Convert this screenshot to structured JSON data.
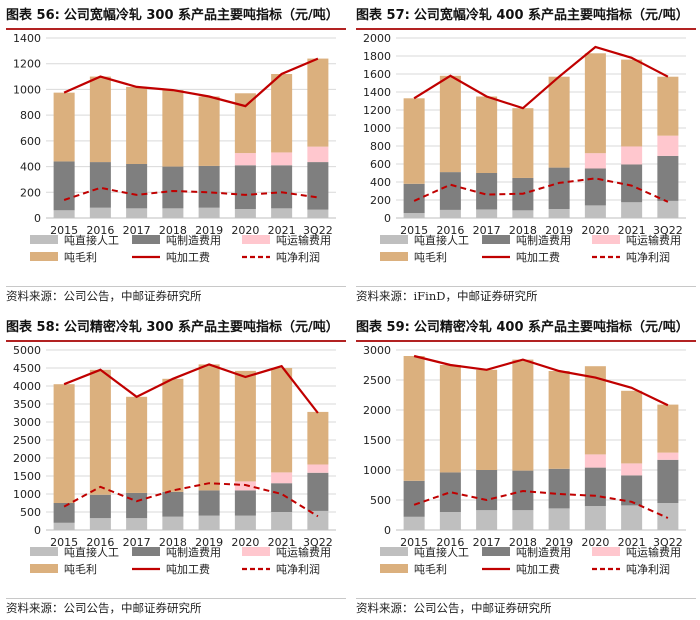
{
  "panels": [
    {
      "title_prefix": "图表 56:",
      "title_text": "公司宽幅冷轧 300 系产品主要吨指标（元/吨）",
      "source": "资料来源：公司公告，中邮证券研究所"
    },
    {
      "title_prefix": "图表 57:",
      "title_text": "公司宽幅冷轧 400 系产品主要吨指标（元/吨）",
      "source": "资料来源：iFinD，中邮证券研究所"
    },
    {
      "title_prefix": "图表 58:",
      "title_text": "公司精密冷轧 300 系产品主要吨指标（元/吨）",
      "source": "资料来源：公司公告，中邮证券研究所"
    },
    {
      "title_prefix": "图表 59:",
      "title_text": "公司精密冷轧 400 系产品主要吨指标（元/吨）",
      "source": "资料来源：公司公告，中邮证券研究所"
    }
  ],
  "chart_data": [
    {
      "type": "bar",
      "stacked": true,
      "categories": [
        "2015",
        "2016",
        "2017",
        "2018",
        "2019",
        "2020",
        "2021",
        "3Q22"
      ],
      "ylim": [
        0,
        1400
      ],
      "yticks": [
        0,
        200,
        400,
        600,
        800,
        1000,
        1200,
        1400
      ],
      "series": [
        {
          "name": "吨直接人工",
          "type": "bar",
          "values": [
            60,
            80,
            75,
            75,
            80,
            70,
            75,
            65
          ]
        },
        {
          "name": "吨制造费用",
          "type": "bar",
          "values": [
            380,
            355,
            345,
            325,
            325,
            340,
            335,
            370
          ]
        },
        {
          "name": "吨运输费用",
          "type": "bar",
          "values": [
            0,
            0,
            0,
            0,
            0,
            95,
            100,
            120
          ]
        },
        {
          "name": "吨毛利",
          "type": "bar",
          "values": [
            535,
            665,
            600,
            595,
            540,
            465,
            610,
            685
          ]
        },
        {
          "name": "吨加工费",
          "type": "line",
          "values": [
            975,
            1100,
            1020,
            995,
            945,
            870,
            1120,
            1240
          ]
        },
        {
          "name": "吨净利润",
          "type": "dashed",
          "values": [
            140,
            235,
            180,
            210,
            200,
            180,
            200,
            160
          ]
        }
      ]
    },
    {
      "type": "bar",
      "stacked": true,
      "categories": [
        "2015",
        "2016",
        "2017",
        "2018",
        "2019",
        "2020",
        "2021",
        "3Q22"
      ],
      "ylim": [
        0,
        2000
      ],
      "yticks": [
        0,
        200,
        400,
        600,
        800,
        1000,
        1200,
        1400,
        1600,
        1800,
        2000
      ],
      "series": [
        {
          "name": "吨直接人工",
          "type": "bar",
          "values": [
            55,
            90,
            95,
            85,
            100,
            140,
            175,
            190
          ]
        },
        {
          "name": "吨制造费用",
          "type": "bar",
          "values": [
            325,
            420,
            405,
            360,
            460,
            410,
            420,
            500
          ]
        },
        {
          "name": "吨运输费用",
          "type": "bar",
          "values": [
            0,
            0,
            0,
            0,
            0,
            170,
            200,
            225
          ]
        },
        {
          "name": "吨毛利",
          "type": "bar",
          "values": [
            950,
            1070,
            850,
            775,
            1010,
            1110,
            965,
            655
          ]
        },
        {
          "name": "吨加工费",
          "type": "line",
          "values": [
            1330,
            1580,
            1350,
            1220,
            1570,
            1900,
            1780,
            1570
          ]
        },
        {
          "name": "吨净利润",
          "type": "dashed",
          "values": [
            190,
            370,
            260,
            270,
            390,
            440,
            360,
            180
          ]
        }
      ]
    },
    {
      "type": "bar",
      "stacked": true,
      "categories": [
        "2015",
        "2016",
        "2017",
        "2018",
        "2019",
        "2020",
        "2021",
        "3Q22"
      ],
      "ylim": [
        0,
        5000
      ],
      "yticks": [
        0,
        500,
        1000,
        1500,
        2000,
        2500,
        3000,
        3500,
        4000,
        4500,
        5000
      ],
      "series": [
        {
          "name": "吨直接人工",
          "type": "bar",
          "values": [
            200,
            330,
            330,
            370,
            400,
            400,
            500,
            530
          ]
        },
        {
          "name": "吨制造费用",
          "type": "bar",
          "values": [
            550,
            650,
            700,
            690,
            700,
            700,
            800,
            1060
          ]
        },
        {
          "name": "吨运输费用",
          "type": "bar",
          "values": [
            0,
            0,
            0,
            0,
            0,
            250,
            300,
            230
          ]
        },
        {
          "name": "吨毛利",
          "type": "bar",
          "values": [
            3300,
            3470,
            2670,
            3140,
            3500,
            3070,
            2900,
            1460
          ]
        },
        {
          "name": "吨加工费",
          "type": "line",
          "values": [
            4050,
            4450,
            3700,
            4200,
            4600,
            4250,
            4550,
            3250
          ]
        },
        {
          "name": "吨净利润",
          "type": "dashed",
          "values": [
            650,
            1200,
            800,
            1100,
            1300,
            1250,
            1000,
            380
          ]
        }
      ]
    },
    {
      "type": "bar",
      "stacked": true,
      "categories": [
        "2015",
        "2016",
        "2017",
        "2018",
        "2019",
        "2020",
        "2021",
        "3Q22"
      ],
      "ylim": [
        0,
        3000
      ],
      "yticks": [
        0,
        500,
        1000,
        1500,
        2000,
        2500,
        3000
      ],
      "series": [
        {
          "name": "吨直接人工",
          "type": "bar",
          "values": [
            220,
            300,
            330,
            330,
            360,
            400,
            410,
            450
          ]
        },
        {
          "name": "吨制造费用",
          "type": "bar",
          "values": [
            600,
            660,
            670,
            660,
            660,
            640,
            500,
            720
          ]
        },
        {
          "name": "吨运输费用",
          "type": "bar",
          "values": [
            0,
            0,
            0,
            0,
            0,
            220,
            200,
            120
          ]
        },
        {
          "name": "吨毛利",
          "type": "bar",
          "values": [
            2080,
            1790,
            1670,
            1850,
            1630,
            1470,
            1210,
            800
          ]
        },
        {
          "name": "吨加工费",
          "type": "line",
          "values": [
            2900,
            2750,
            2670,
            2840,
            2650,
            2540,
            2370,
            2080
          ]
        },
        {
          "name": "吨净利润",
          "type": "dashed",
          "values": [
            420,
            630,
            500,
            650,
            600,
            570,
            470,
            200
          ]
        }
      ]
    }
  ],
  "legend_colors": {
    "吨直接人工": "#bfbfbf",
    "吨制造费用": "#7f7f7f",
    "吨运输费用": "#ffc7ce",
    "吨毛利": "#dbb07e",
    "吨加工费": "#c00000",
    "吨净利润": "#c00000"
  }
}
